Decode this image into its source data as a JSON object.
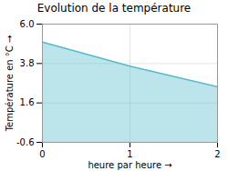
{
  "chart_data": {
    "type": "area",
    "title": "Evolution de la température",
    "xlabel": "heure par heure",
    "ylabel": "Température en °C",
    "x": [
      0,
      1,
      2
    ],
    "values": [
      5.0,
      3.65,
      2.5
    ],
    "color": "#55bbcc",
    "xlim": [
      0,
      2
    ],
    "ylim": [
      -0.6,
      6.0
    ],
    "xticks": [
      0,
      1,
      2
    ],
    "yticks": [
      -0.6,
      1.6,
      3.8,
      {
        "value": 6.0,
        "label": "6.0"
      }
    ],
    "grid": true
  }
}
